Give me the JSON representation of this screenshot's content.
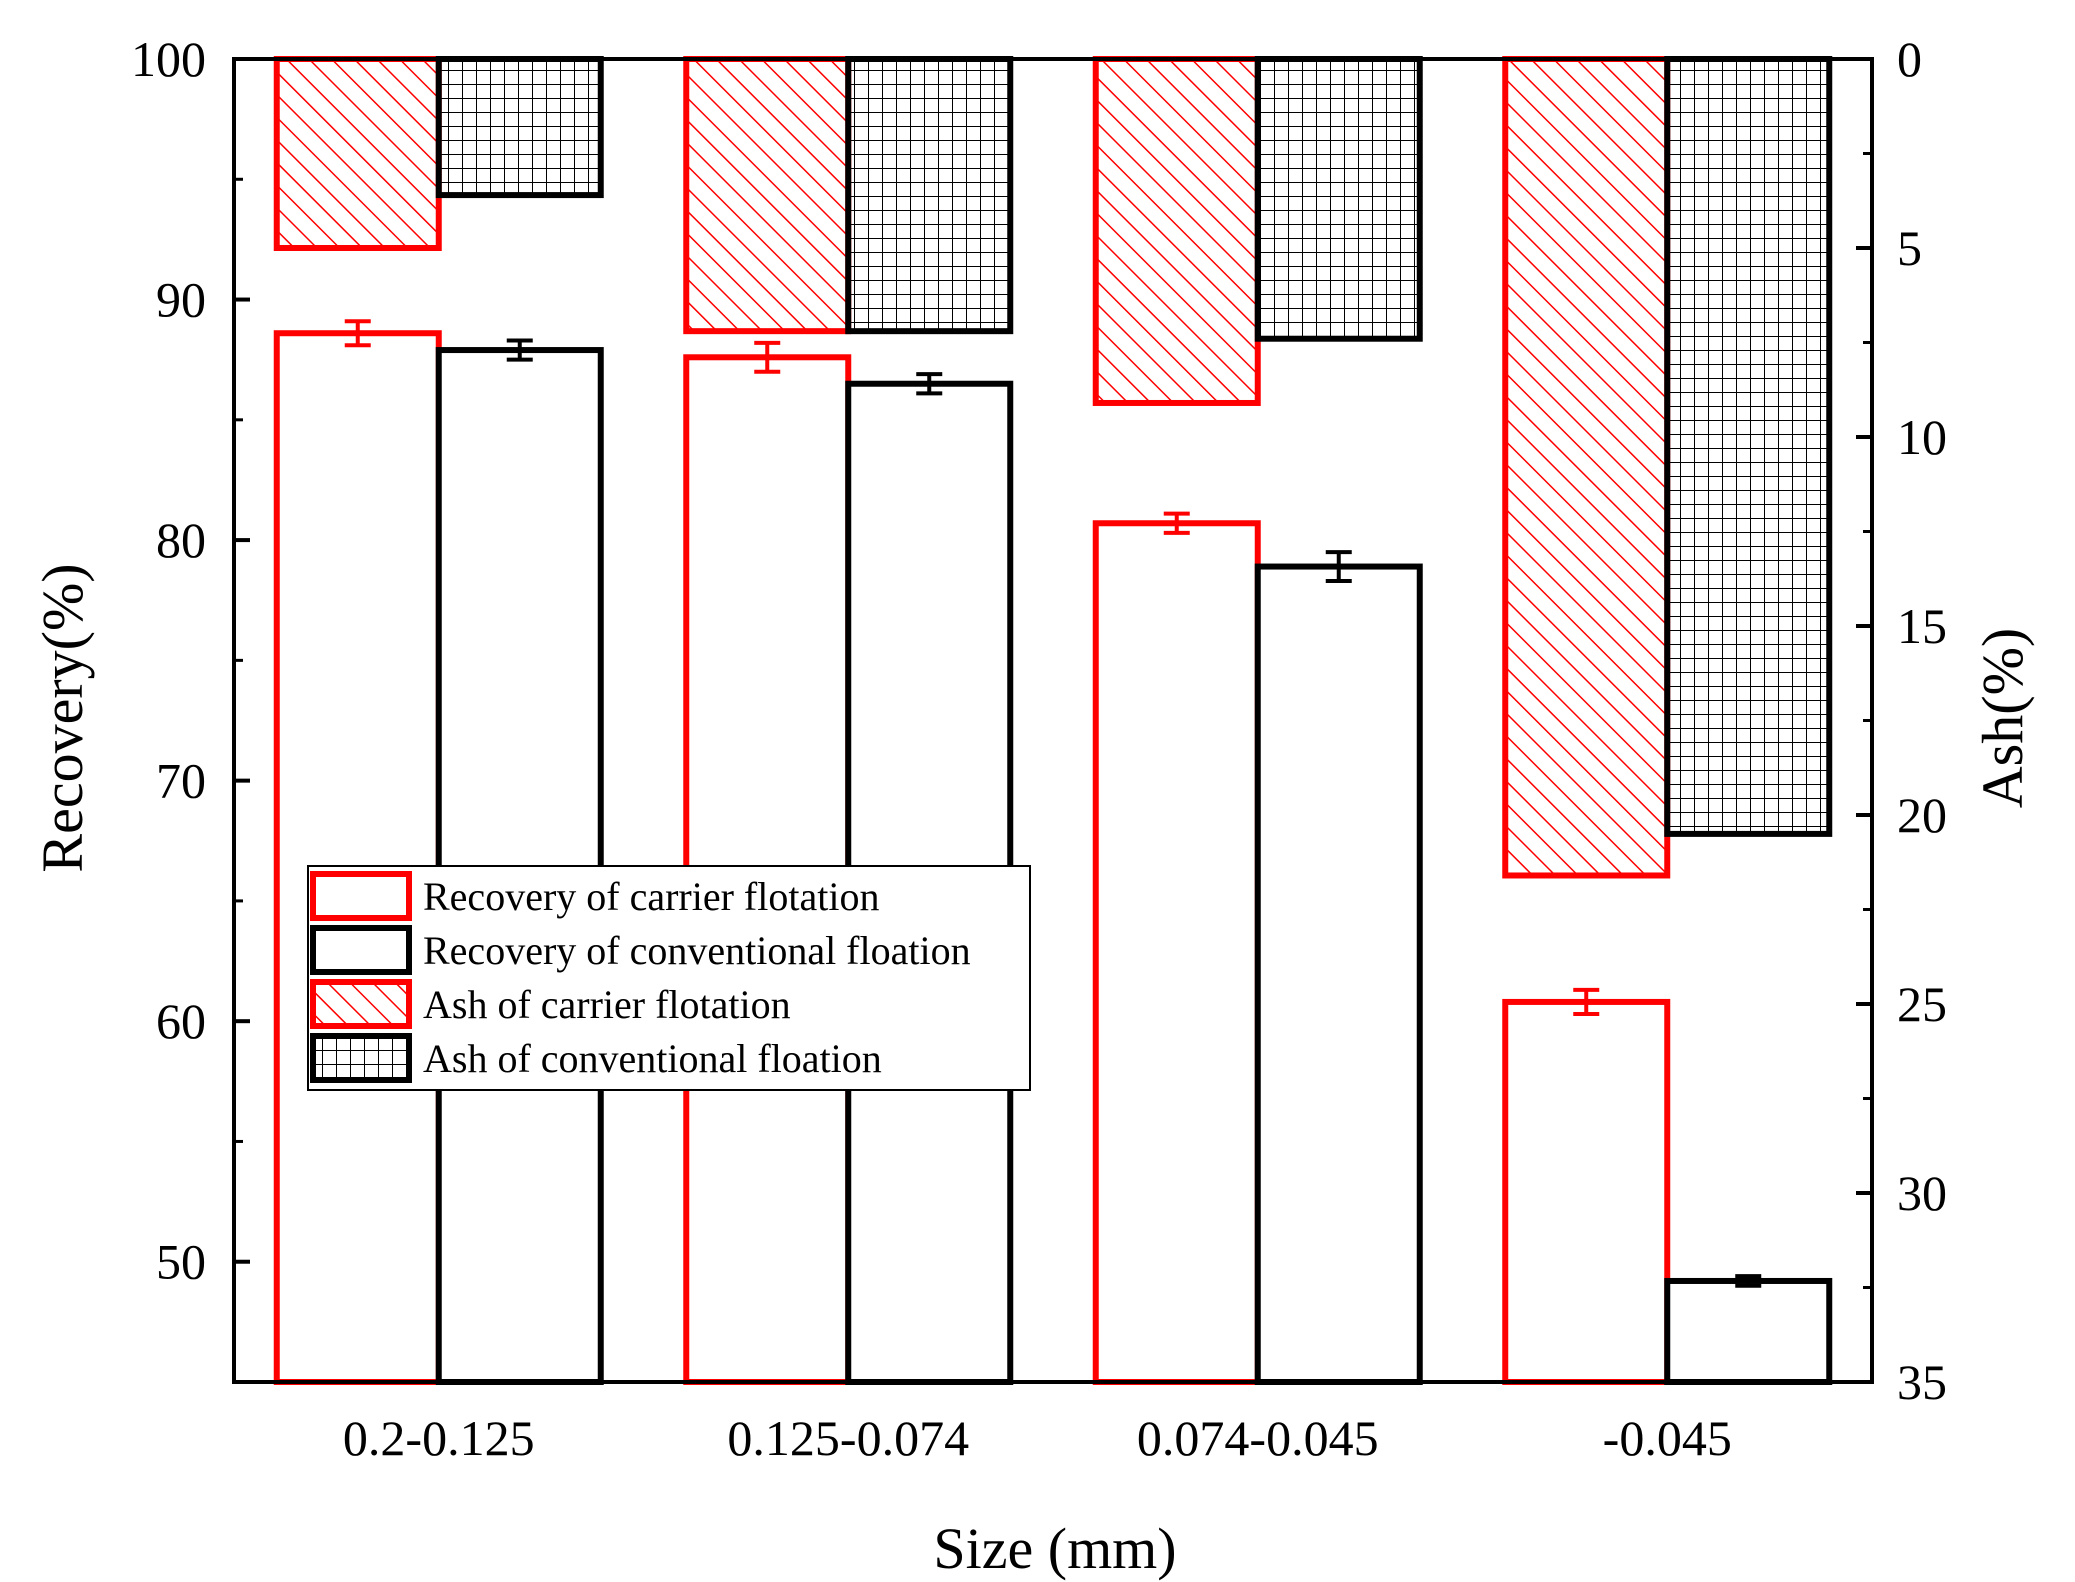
{
  "chart_data": {
    "type": "bar",
    "xlabel": "Size (mm)",
    "ylabel": "Recovery(%)",
    "y2label": "Ash(%)",
    "categories": [
      "0.2-0.125",
      "0.125-0.074",
      "0.074-0.045",
      "-0.045"
    ],
    "ylim": [
      45,
      100
    ],
    "yticks": [
      "50",
      "60",
      "70",
      "80",
      "90",
      "100"
    ],
    "y2lim": [
      0,
      35
    ],
    "y2_inverted": true,
    "y2ticks": [
      "0",
      "5",
      "10",
      "15",
      "20",
      "25",
      "30",
      "35"
    ],
    "series": [
      {
        "name": "Recovery of carrier flotation",
        "axis": "left",
        "style": "outline",
        "color": "#ff0000",
        "values": [
          88.6,
          87.6,
          80.7,
          60.8
        ],
        "errors": [
          0.5,
          0.6,
          0.4,
          0.5
        ]
      },
      {
        "name": "Recovery of conventional floation",
        "axis": "left",
        "style": "outline",
        "color": "#000000",
        "values": [
          87.9,
          86.5,
          78.9,
          49.2
        ],
        "errors": [
          0.4,
          0.4,
          0.6,
          0.2
        ]
      },
      {
        "name": "Ash of carrier flotation",
        "axis": "right",
        "style": "hatch",
        "color": "#ff0000",
        "values": [
          5.0,
          7.2,
          9.1,
          21.6
        ]
      },
      {
        "name": "Ash of conventional floation",
        "axis": "right",
        "style": "grid",
        "color": "#000000",
        "values": [
          3.6,
          7.2,
          7.4,
          20.5
        ]
      }
    ],
    "legend_position": "center-left",
    "grid": false
  }
}
